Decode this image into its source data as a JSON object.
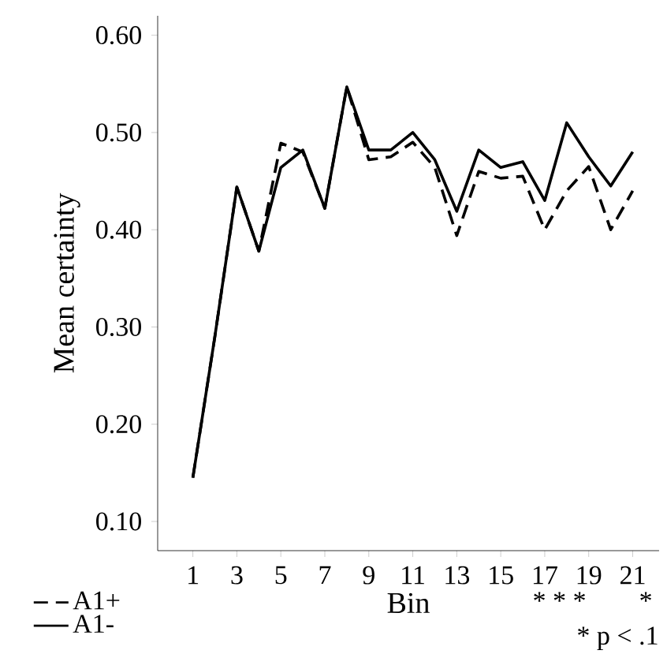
{
  "chart_data": {
    "type": "line",
    "xlabel": "Bin",
    "ylabel": "Mean certainty",
    "x": [
      1,
      2,
      3,
      4,
      5,
      6,
      7,
      8,
      9,
      10,
      11,
      12,
      13,
      14,
      15,
      16,
      17,
      18,
      19,
      20,
      21
    ],
    "series": [
      {
        "name": "A1+",
        "color": "#000000",
        "line_style": "dashed",
        "values": [
          0.145,
          0.29,
          0.444,
          0.378,
          0.489,
          0.48,
          0.422,
          0.547,
          0.472,
          0.475,
          0.49,
          0.464,
          0.394,
          0.46,
          0.453,
          0.455,
          0.4,
          0.44,
          0.465,
          0.4,
          0.44
        ]
      },
      {
        "name": "A1-",
        "color": "#000000",
        "line_style": "solid",
        "values": [
          0.145,
          0.29,
          0.444,
          0.378,
          0.464,
          0.482,
          0.422,
          0.547,
          0.482,
          0.482,
          0.5,
          0.472,
          0.419,
          0.482,
          0.464,
          0.47,
          0.43,
          0.51,
          0.475,
          0.445,
          0.48
        ]
      }
    ],
    "xlim": [
      -0.6,
      22.2
    ],
    "ylim": [
      0.07,
      0.62
    ],
    "xticks": [
      1,
      3,
      5,
      7,
      9,
      11,
      13,
      15,
      17,
      19,
      21
    ],
    "yticks": [
      {
        "value": 0.1,
        "label": "0.10"
      },
      {
        "value": 0.2,
        "label": "0.20"
      },
      {
        "value": 0.3,
        "label": "0.30"
      },
      {
        "value": 0.4,
        "label": "0.40"
      },
      {
        "value": 0.5,
        "label": "0.50"
      },
      {
        "value": 0.6,
        "label": "0.60"
      }
    ],
    "grid": false,
    "legend": "bottom left",
    "marker": "none",
    "annotations": [
      "* * *",
      "*",
      "* p < .1"
    ]
  }
}
